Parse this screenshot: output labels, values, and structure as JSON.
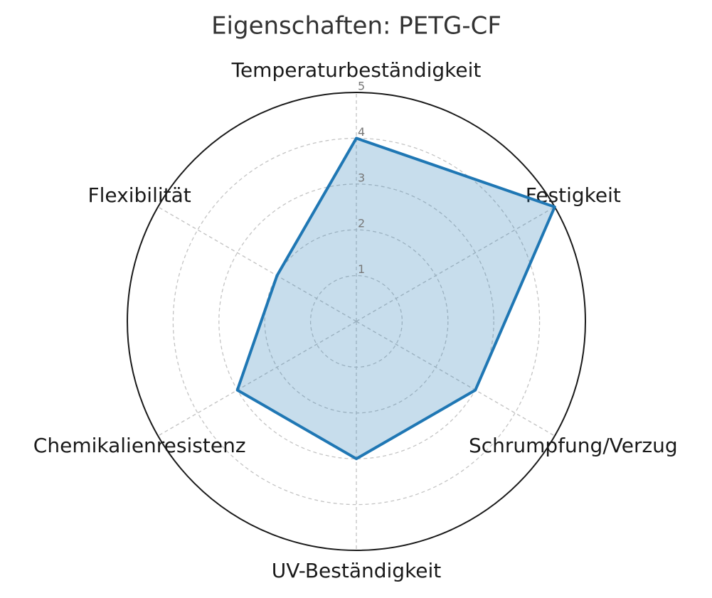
{
  "chart_data": {
    "type": "radar",
    "title": "Eigenschaften: PETG-CF",
    "categories": [
      "Temperaturbeständigkeit",
      "Festigkeit",
      "Schrumpfung/Verzug",
      "UV-Beständigkeit",
      "Chemikalienresistenz",
      "Flexibilität"
    ],
    "values": [
      4,
      5,
      3,
      3,
      3,
      2
    ],
    "color": "#1f77b4",
    "ylim": [
      0,
      5
    ],
    "yticks": [
      1,
      2,
      3,
      4,
      5
    ],
    "grid": true
  }
}
